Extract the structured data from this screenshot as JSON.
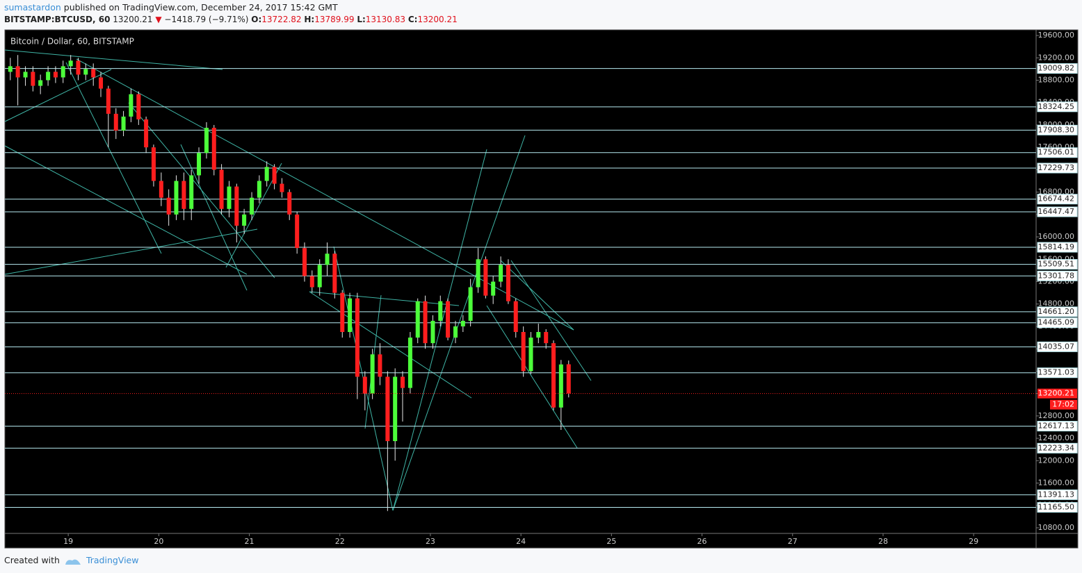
{
  "header": {
    "author": "sumastardon",
    "published": "published on TradingView.com, December 24, 2017 15:42 GMT",
    "symbol": "BITSTAMP:BTCUSD, 60",
    "last": "13200.21",
    "arrow": "▼",
    "change": "−1418.79 (−9.71%)",
    "open_label": "O:",
    "open": "13722.82",
    "high_label": "H:",
    "high": "13789.99",
    "low_label": "L:",
    "low": "13130.83",
    "close_label": "C:",
    "close": "13200.21"
  },
  "chart_data": {
    "type": "candlestick",
    "legend": "Bitcoin / Dollar, 60, BITSTAMP",
    "x": [
      18.36,
      18.443,
      18.527,
      18.61,
      18.693,
      18.777,
      18.86,
      18.943,
      19.027,
      19.11,
      19.193,
      19.277,
      19.36,
      19.443,
      19.527,
      19.61,
      19.693,
      19.777,
      19.86,
      19.943,
      20.027,
      20.11,
      20.193,
      20.277,
      20.36,
      20.443,
      20.527,
      20.61,
      20.693,
      20.777,
      20.86,
      20.943,
      21.027,
      21.11,
      21.193,
      21.277,
      21.36,
      21.443,
      21.527,
      21.61,
      21.693,
      21.777,
      21.86,
      21.943,
      22.027,
      22.11,
      22.193,
      22.277,
      22.36,
      22.443,
      22.527,
      22.61,
      22.693,
      22.777,
      22.86,
      22.943,
      23.027,
      23.11,
      23.193,
      23.277,
      23.36,
      23.443,
      23.527,
      23.61,
      23.693,
      23.777,
      23.86,
      23.943,
      24.027,
      24.11,
      24.193,
      24.277,
      24.36,
      24.443,
      24.527
    ],
    "open": [
      18950,
      19050,
      18850,
      18950,
      18700,
      18800,
      18950,
      18850,
      19050,
      19150,
      18900,
      19000,
      18850,
      18650,
      18200,
      17900,
      18150,
      18550,
      18100,
      17600,
      17000,
      16700,
      16400,
      17000,
      16500,
      17100,
      17500,
      17950,
      17200,
      16500,
      16900,
      16200,
      16400,
      16700,
      17000,
      17250,
      16950,
      16800,
      16400,
      15800,
      15300,
      15100,
      15500,
      15700,
      15000,
      14300,
      14900,
      13500,
      13200,
      13900,
      13500,
      12350,
      13500,
      13300,
      14200,
      14850,
      14100,
      14500,
      14850,
      14200,
      14400,
      14500,
      15100,
      15600,
      14950,
      15200,
      15500,
      14850,
      14300,
      13600,
      14200,
      14300,
      14100,
      12950,
      13722.82
    ],
    "high": [
      19200,
      19250,
      19050,
      19050,
      18900,
      19050,
      19050,
      19150,
      19250,
      19200,
      19100,
      19100,
      18950,
      18700,
      18300,
      18250,
      18650,
      18600,
      18150,
      17650,
      17150,
      16850,
      17100,
      17150,
      17200,
      17600,
      18050,
      18000,
      17300,
      17000,
      16950,
      16500,
      16800,
      17100,
      17350,
      17300,
      17050,
      16850,
      16450,
      15900,
      15400,
      15600,
      15900,
      15750,
      15050,
      15000,
      15000,
      13600,
      14000,
      14100,
      13600,
      13650,
      13600,
      14300,
      14900,
      14950,
      14600,
      14950,
      14900,
      14500,
      14600,
      15250,
      15800,
      15650,
      15300,
      15650,
      15600,
      14900,
      14400,
      14300,
      14450,
      14350,
      14150,
      13800,
      13789.99
    ],
    "low": [
      18800,
      18350,
      18700,
      18600,
      18550,
      18700,
      18750,
      18750,
      18900,
      18800,
      18800,
      18700,
      18500,
      17600,
      17750,
      17800,
      18050,
      18000,
      17500,
      16900,
      16550,
      16200,
      16300,
      16300,
      16300,
      16950,
      17400,
      17100,
      16400,
      16350,
      15900,
      16050,
      16300,
      16600,
      16900,
      16850,
      16700,
      16300,
      15700,
      15200,
      15000,
      14950,
      15300,
      14900,
      14200,
      14200,
      13100,
      12900,
      13100,
      13350,
      11100,
      12000,
      12700,
      13200,
      14100,
      14000,
      14000,
      14400,
      14150,
      14100,
      14300,
      14400,
      15000,
      14900,
      14800,
      15100,
      14800,
      14200,
      13500,
      13550,
      14100,
      14000,
      12900,
      12550,
      13130.83
    ],
    "close": [
      19050,
      18850,
      18950,
      18700,
      18800,
      18950,
      18850,
      19050,
      19150,
      18900,
      19000,
      18850,
      18650,
      18200,
      17900,
      18150,
      18550,
      18100,
      17600,
      17000,
      16700,
      16400,
      17000,
      16500,
      17100,
      17500,
      17950,
      17200,
      16500,
      16900,
      16200,
      16400,
      16700,
      17000,
      17250,
      16950,
      16800,
      16400,
      15800,
      15300,
      15100,
      15500,
      15700,
      15000,
      14300,
      14900,
      13500,
      13200,
      13900,
      13500,
      12350,
      13500,
      13300,
      14200,
      14850,
      14100,
      14500,
      14850,
      14200,
      14400,
      14500,
      15100,
      15600,
      14950,
      15200,
      15500,
      14850,
      14300,
      13600,
      14200,
      14300,
      14100,
      12950,
      13720,
      13200.21
    ],
    "up_color": "#4cff3a",
    "down_color": "#ff1e1e",
    "wick_color": "#e8e8e8",
    "xlim": [
      18.3,
      29.69
    ],
    "xticks": [
      19,
      20,
      21,
      22,
      23,
      24,
      25,
      26,
      27,
      28,
      29
    ],
    "ylim": [
      10700,
      19700
    ],
    "yticks": [
      {
        "value": 10800,
        "label": "10800.00"
      },
      {
        "value": 11200,
        "label": "11200.00"
      },
      {
        "value": 11600,
        "label": "11600.00"
      },
      {
        "value": 12000,
        "label": "12000.00"
      },
      {
        "value": 12400,
        "label": "12400.00"
      },
      {
        "value": 12800,
        "label": "12800.00"
      },
      {
        "value": 13200,
        "label": "13200.00"
      },
      {
        "value": 13600,
        "label": "13600.00"
      },
      {
        "value": 14000,
        "label": "14000.00"
      },
      {
        "value": 14400,
        "label": "14400.00"
      },
      {
        "value": 14800,
        "label": "14800.00"
      },
      {
        "value": 15200,
        "label": "15200.00"
      },
      {
        "value": 15600,
        "label": "15600.00"
      },
      {
        "value": 16000,
        "label": "16000.00"
      },
      {
        "value": 16400,
        "label": "16400.00"
      },
      {
        "value": 16800,
        "label": "16800.00"
      },
      {
        "value": 17200,
        "label": "17200.00"
      },
      {
        "value": 17600,
        "label": "17600.00"
      },
      {
        "value": 18000,
        "label": "18000.00"
      },
      {
        "value": 18400,
        "label": "18400.00"
      },
      {
        "value": 18800,
        "label": "18800.00"
      },
      {
        "value": 19200,
        "label": "19200.00"
      },
      {
        "value": 19600,
        "label": "19600.00"
      }
    ],
    "levels": [
      19009.82,
      18324.25,
      {
        "value": 17908.3,
        "label": "17908.30"
      },
      17506.01,
      17229.73,
      16674.42,
      16447.47,
      15814.19,
      15509.51,
      15301.78,
      {
        "value": 14661.2,
        "label": "14661.20"
      },
      14465.09,
      14035.07,
      13571.03,
      12617.13,
      12223.34,
      11391.13,
      {
        "value": 11165.5,
        "label": "11165.50"
      }
    ],
    "level_color": "#b8ecf2",
    "last_price": 13200.21,
    "countdown": "17:02",
    "last_color": "#ff1e1e"
  },
  "footer": {
    "created": "Created with",
    "brand": "TradingView"
  }
}
